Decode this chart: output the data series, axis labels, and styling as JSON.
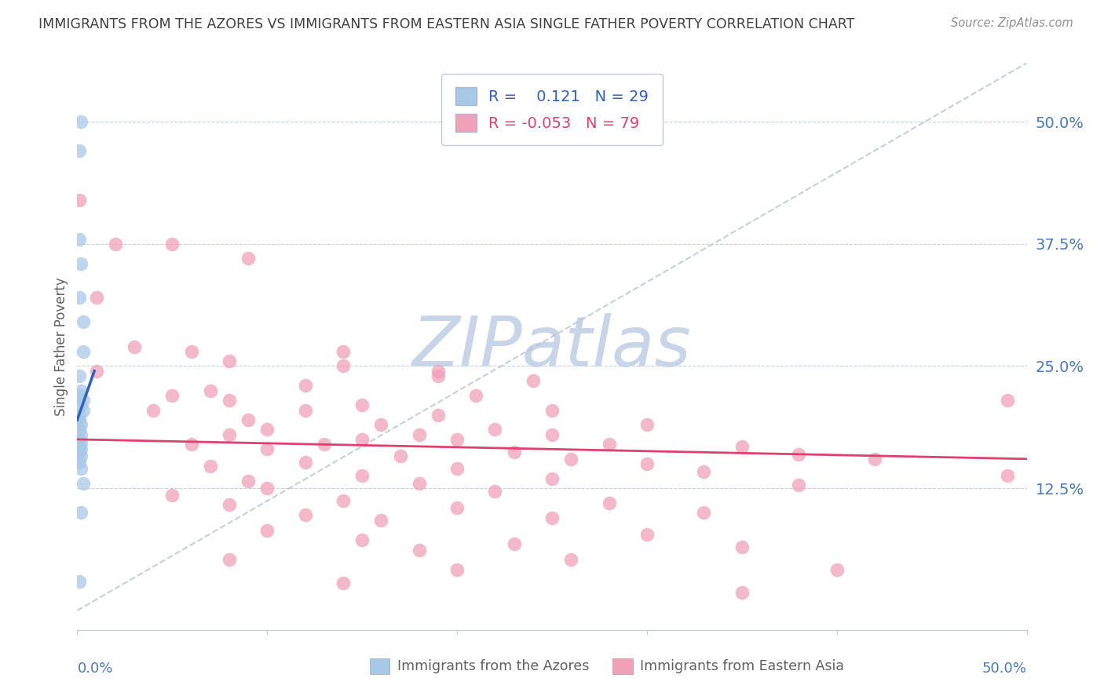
{
  "title": "IMMIGRANTS FROM THE AZORES VS IMMIGRANTS FROM EASTERN ASIA SINGLE FATHER POVERTY CORRELATION CHART",
  "source": "Source: ZipAtlas.com",
  "ylabel": "Single Father Poverty",
  "ytick_labels": [
    "50.0%",
    "37.5%",
    "25.0%",
    "12.5%"
  ],
  "ytick_values": [
    0.5,
    0.375,
    0.25,
    0.125
  ],
  "xlim": [
    0.0,
    0.5
  ],
  "ylim": [
    -0.02,
    0.56
  ],
  "legend_r_blue": "0.121",
  "legend_n_blue": "29",
  "legend_r_pink": "-0.053",
  "legend_n_pink": "79",
  "blue_color": "#a8c8e8",
  "pink_color": "#f0a0b8",
  "trendline_blue_color": "#3060c0",
  "trendline_pink_color": "#e04070",
  "trendline_dashed_color": "#b8c4d0",
  "watermark_color": "#c8d4e8",
  "title_color": "#404040",
  "axis_label_color": "#4878c0",
  "blue_trendline": [
    [
      0.0,
      0.195
    ],
    [
      0.009,
      0.245
    ]
  ],
  "pink_trendline": [
    [
      0.0,
      0.175
    ],
    [
      0.5,
      0.155
    ]
  ],
  "diag_line": [
    [
      0.0,
      0.0
    ],
    [
      0.5,
      0.56
    ]
  ],
  "blue_points": [
    [
      0.001,
      0.47
    ],
    [
      0.002,
      0.5
    ],
    [
      0.001,
      0.38
    ],
    [
      0.002,
      0.355
    ],
    [
      0.001,
      0.32
    ],
    [
      0.003,
      0.295
    ],
    [
      0.003,
      0.265
    ],
    [
      0.001,
      0.24
    ],
    [
      0.002,
      0.225
    ],
    [
      0.003,
      0.215
    ],
    [
      0.001,
      0.22
    ],
    [
      0.002,
      0.21
    ],
    [
      0.003,
      0.205
    ],
    [
      0.001,
      0.2
    ],
    [
      0.001,
      0.195
    ],
    [
      0.002,
      0.19
    ],
    [
      0.001,
      0.185
    ],
    [
      0.002,
      0.18
    ],
    [
      0.001,
      0.175
    ],
    [
      0.002,
      0.172
    ],
    [
      0.001,
      0.168
    ],
    [
      0.002,
      0.165
    ],
    [
      0.001,
      0.162
    ],
    [
      0.002,
      0.158
    ],
    [
      0.001,
      0.152
    ],
    [
      0.002,
      0.145
    ],
    [
      0.003,
      0.13
    ],
    [
      0.002,
      0.1
    ],
    [
      0.001,
      0.03
    ]
  ],
  "pink_points": [
    [
      0.001,
      0.42
    ],
    [
      0.02,
      0.375
    ],
    [
      0.05,
      0.375
    ],
    [
      0.09,
      0.36
    ],
    [
      0.01,
      0.32
    ],
    [
      0.03,
      0.27
    ],
    [
      0.06,
      0.265
    ],
    [
      0.14,
      0.265
    ],
    [
      0.08,
      0.255
    ],
    [
      0.14,
      0.25
    ],
    [
      0.01,
      0.245
    ],
    [
      0.19,
      0.245
    ],
    [
      0.19,
      0.24
    ],
    [
      0.24,
      0.235
    ],
    [
      0.12,
      0.23
    ],
    [
      0.07,
      0.225
    ],
    [
      0.05,
      0.22
    ],
    [
      0.21,
      0.22
    ],
    [
      0.08,
      0.215
    ],
    [
      0.15,
      0.21
    ],
    [
      0.04,
      0.205
    ],
    [
      0.12,
      0.205
    ],
    [
      0.25,
      0.205
    ],
    [
      0.19,
      0.2
    ],
    [
      0.09,
      0.195
    ],
    [
      0.16,
      0.19
    ],
    [
      0.3,
      0.19
    ],
    [
      0.1,
      0.185
    ],
    [
      0.22,
      0.185
    ],
    [
      0.08,
      0.18
    ],
    [
      0.18,
      0.18
    ],
    [
      0.25,
      0.18
    ],
    [
      0.15,
      0.175
    ],
    [
      0.2,
      0.175
    ],
    [
      0.06,
      0.17
    ],
    [
      0.13,
      0.17
    ],
    [
      0.28,
      0.17
    ],
    [
      0.35,
      0.168
    ],
    [
      0.1,
      0.165
    ],
    [
      0.23,
      0.162
    ],
    [
      0.38,
      0.16
    ],
    [
      0.17,
      0.158
    ],
    [
      0.26,
      0.155
    ],
    [
      0.42,
      0.155
    ],
    [
      0.12,
      0.152
    ],
    [
      0.3,
      0.15
    ],
    [
      0.07,
      0.148
    ],
    [
      0.2,
      0.145
    ],
    [
      0.33,
      0.142
    ],
    [
      0.15,
      0.138
    ],
    [
      0.25,
      0.135
    ],
    [
      0.09,
      0.132
    ],
    [
      0.18,
      0.13
    ],
    [
      0.38,
      0.128
    ],
    [
      0.1,
      0.125
    ],
    [
      0.22,
      0.122
    ],
    [
      0.05,
      0.118
    ],
    [
      0.14,
      0.112
    ],
    [
      0.28,
      0.11
    ],
    [
      0.08,
      0.108
    ],
    [
      0.2,
      0.105
    ],
    [
      0.33,
      0.1
    ],
    [
      0.12,
      0.098
    ],
    [
      0.25,
      0.095
    ],
    [
      0.16,
      0.092
    ],
    [
      0.1,
      0.082
    ],
    [
      0.3,
      0.078
    ],
    [
      0.15,
      0.072
    ],
    [
      0.23,
      0.068
    ],
    [
      0.35,
      0.065
    ],
    [
      0.18,
      0.062
    ],
    [
      0.08,
      0.052
    ],
    [
      0.26,
      0.052
    ],
    [
      0.2,
      0.042
    ],
    [
      0.4,
      0.042
    ],
    [
      0.14,
      0.028
    ],
    [
      0.35,
      0.018
    ],
    [
      0.49,
      0.215
    ],
    [
      0.49,
      0.138
    ]
  ]
}
